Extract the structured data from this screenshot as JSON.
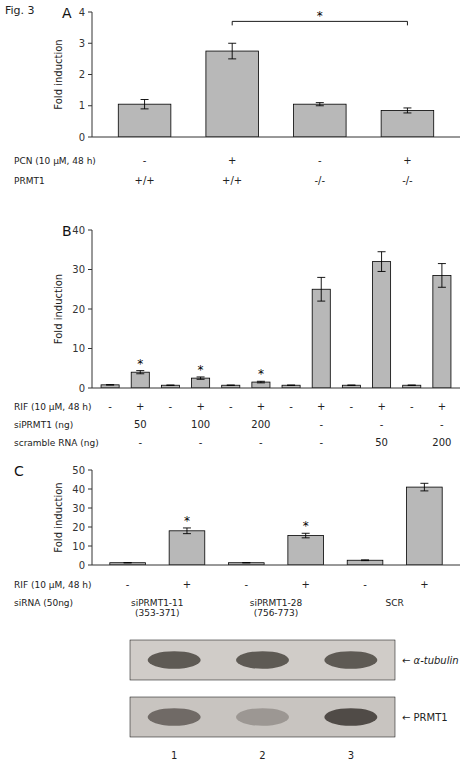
{
  "title": "Fig. 3",
  "chart_data": [
    {
      "type": "bar",
      "title": "A",
      "ylabel": "Fold induction",
      "values": [
        1.05,
        2.75,
        1.05,
        0.85
      ],
      "errors": [
        0.15,
        0.25,
        0.05,
        0.08
      ],
      "color": "#b8b8b8",
      "edge_color": "#000000",
      "ylim": [
        0,
        4
      ],
      "yticks": [
        0,
        1,
        2,
        3,
        4
      ],
      "grid": false,
      "category_rows": [
        {
          "label": "PCN (10 μM, 48 h)",
          "values": [
            "-",
            "+",
            "-",
            "+"
          ]
        },
        {
          "label": "PRMT1",
          "values": [
            "+/+",
            "+/+",
            "-/-",
            "-/-"
          ]
        }
      ],
      "annotations": [
        {
          "text": "*",
          "from": 1,
          "to": 3,
          "y": 3.7
        }
      ]
    },
    {
      "type": "bar",
      "title": "B",
      "ylabel": "Fold induction",
      "values": [
        0.8,
        4.0,
        0.7,
        2.5,
        0.7,
        1.5,
        0.7,
        25.0,
        0.7,
        32.0,
        0.7,
        28.5
      ],
      "errors": [
        0.05,
        0.4,
        0.05,
        0.3,
        0.05,
        0.2,
        0.05,
        3.0,
        0.05,
        2.5,
        0.05,
        3.0
      ],
      "color": "#b8b8b8",
      "edge_color": "#000000",
      "ylim": [
        0,
        40
      ],
      "yticks": [
        0,
        10,
        20,
        30,
        40
      ],
      "grid": false,
      "category_rows": [
        {
          "label": "RIF (10 μM, 48 h)",
          "values": [
            "-",
            "+",
            "-",
            "+",
            "-",
            "+",
            "-",
            "+",
            "-",
            "+",
            "-",
            "+"
          ]
        },
        {
          "label": "siPRMT1 (ng)",
          "values": [
            null,
            "50",
            null,
            "100",
            null,
            "200",
            null,
            "-",
            null,
            "-",
            null,
            "-"
          ]
        },
        {
          "label": "scramble RNA (ng)",
          "values": [
            null,
            "-",
            null,
            "-",
            null,
            "-",
            null,
            "-",
            null,
            "50",
            null,
            "200"
          ]
        }
      ],
      "annotations": [
        {
          "text": "*",
          "index": 1
        },
        {
          "text": "*",
          "index": 3
        },
        {
          "text": "*",
          "index": 5
        }
      ]
    },
    {
      "type": "bar",
      "title": "C",
      "ylabel": "Fold induction",
      "values": [
        1.2,
        18.0,
        1.2,
        15.5,
        2.5,
        41.0
      ],
      "errors": [
        0.1,
        1.5,
        0.1,
        1.2,
        0.2,
        2.0
      ],
      "color": "#b8b8b8",
      "edge_color": "#000000",
      "ylim": [
        0,
        50
      ],
      "yticks": [
        0,
        10,
        20,
        30,
        40,
        50
      ],
      "grid": false,
      "category_rows": [
        {
          "label": "RIF (10 μM, 48 h)",
          "values": [
            "-",
            "+",
            "-",
            "+",
            "-",
            "+"
          ]
        },
        {
          "label": "siRNA (50ng)",
          "groups": [
            "siPRMT1-11\n(353-371)",
            "siPRMT1-28\n(756-773)",
            "SCR"
          ]
        }
      ],
      "annotations": [
        {
          "text": "*",
          "index": 1
        },
        {
          "text": "*",
          "index": 3
        }
      ]
    },
    {
      "type": "blot",
      "categories": [
        "1",
        "2",
        "3"
      ],
      "annotations": [
        "← α-tubulin",
        "← PRMT1"
      ]
    }
  ]
}
